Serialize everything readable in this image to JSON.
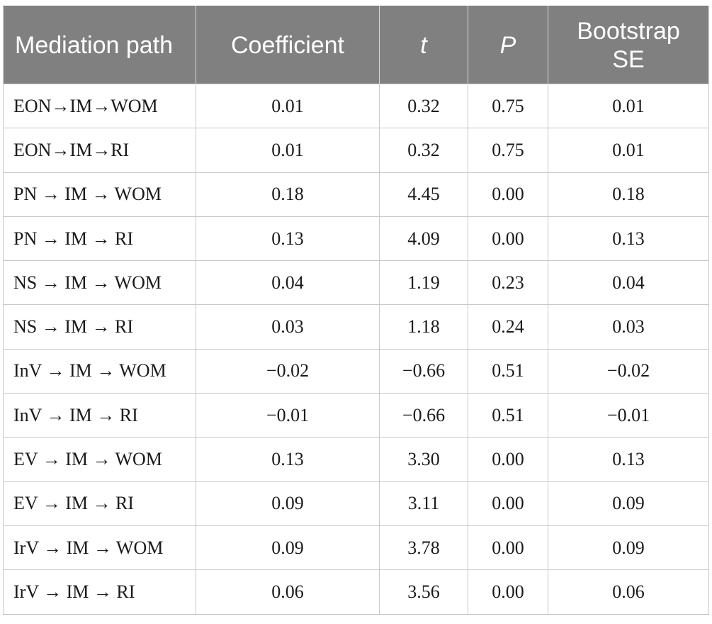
{
  "table": {
    "headers": [
      {
        "label": "Mediation path",
        "italic": false,
        "align": "left"
      },
      {
        "label": "Coefficient",
        "italic": false,
        "align": "center"
      },
      {
        "label": "t",
        "italic": true,
        "align": "center"
      },
      {
        "label": "P",
        "italic": true,
        "align": "center"
      },
      {
        "label": "Bootstrap SE",
        "italic": false,
        "align": "center"
      }
    ],
    "rows": [
      [
        "EON→IM→WOM",
        "0.01",
        "0.32",
        "0.75",
        "0.01"
      ],
      [
        "EON→IM→RI",
        "0.01",
        "0.32",
        "0.75",
        "0.01"
      ],
      [
        "PN → IM → WOM",
        "0.18",
        "4.45",
        "0.00",
        "0.18"
      ],
      [
        "PN → IM → RI",
        "0.13",
        "4.09",
        "0.00",
        "0.13"
      ],
      [
        "NS → IM → WOM",
        "0.04",
        "1.19",
        "0.23",
        "0.04"
      ],
      [
        "NS → IM → RI",
        "0.03",
        "1.18",
        "0.24",
        "0.03"
      ],
      [
        "InV → IM → WOM",
        "−0.02",
        "−0.66",
        "0.51",
        "−0.02"
      ],
      [
        "InV → IM → RI",
        "−0.01",
        "−0.66",
        "0.51",
        "−0.01"
      ],
      [
        "EV → IM → WOM",
        "0.13",
        "3.30",
        "0.00",
        "0.13"
      ],
      [
        "EV → IM → RI",
        "0.09",
        "3.11",
        "0.00",
        "0.09"
      ],
      [
        "IrV → IM → WOM",
        "0.09",
        "3.78",
        "0.00",
        "0.09"
      ],
      [
        "IrV → IM → RI",
        "0.06",
        "3.56",
        "0.00",
        "0.06"
      ]
    ]
  },
  "colors": {
    "header_bg": "#808080",
    "header_text": "#ffffff",
    "border": "#c8c8c8"
  }
}
